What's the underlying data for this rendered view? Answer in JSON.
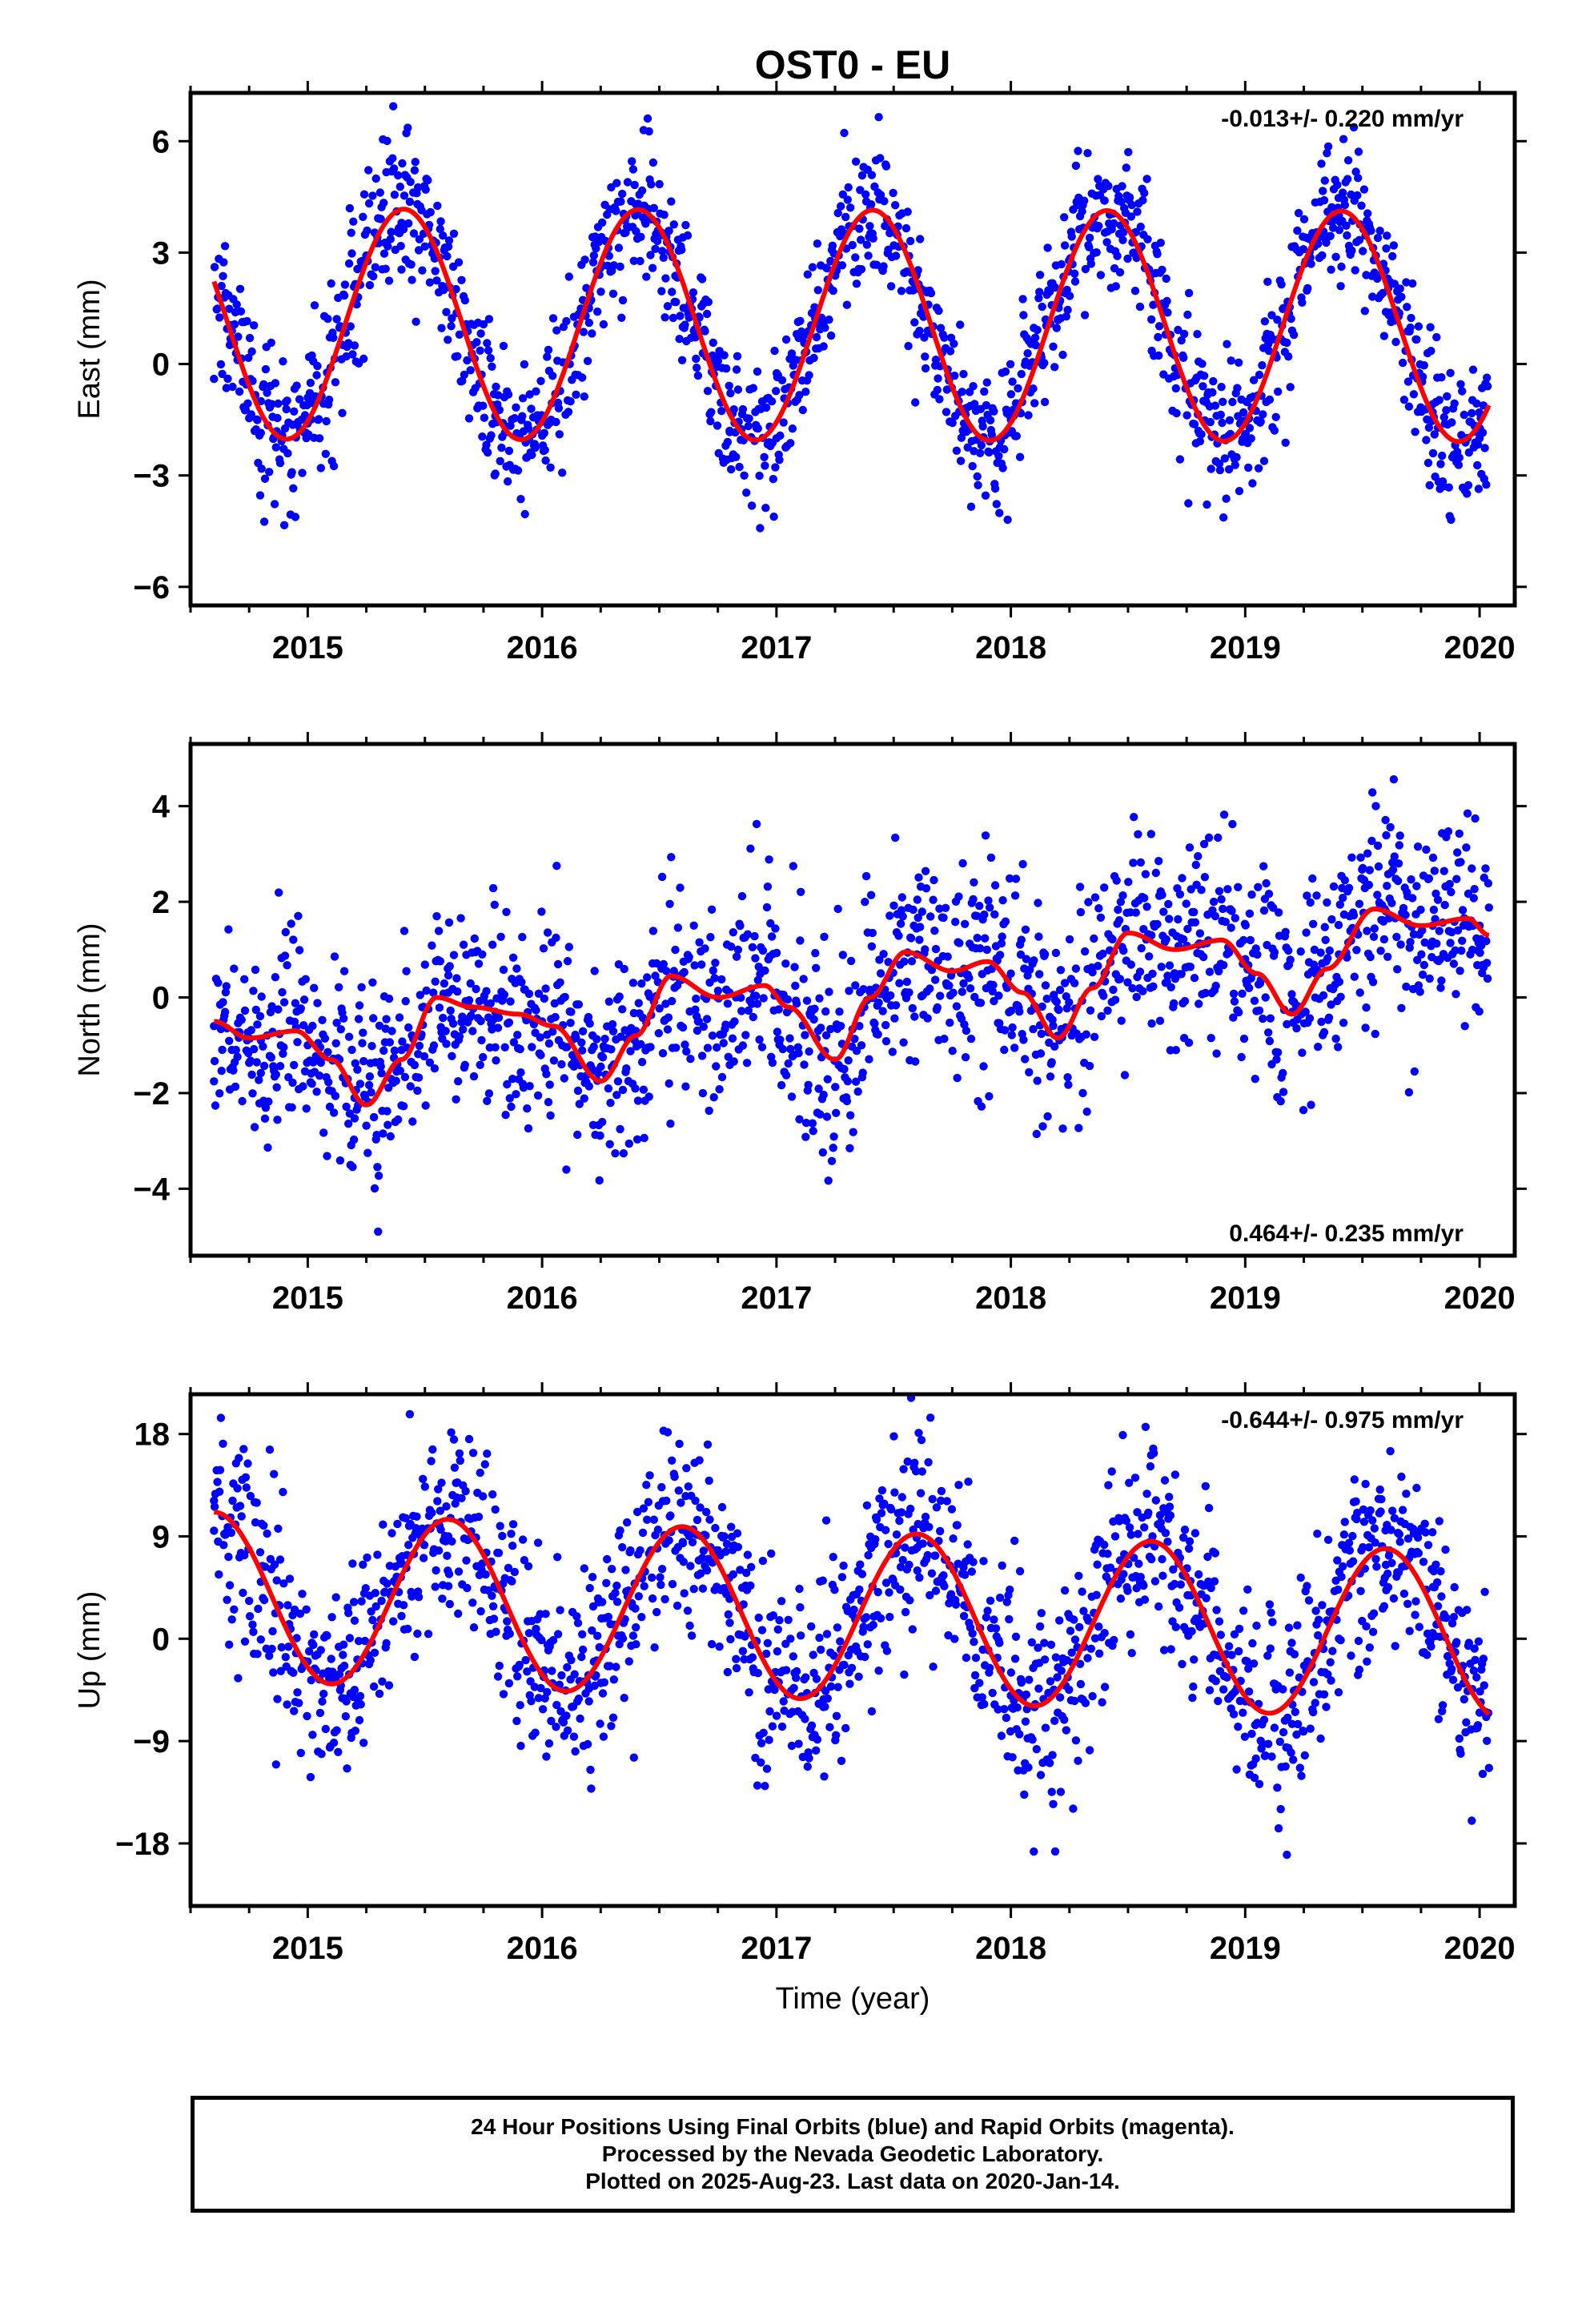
{
  "title": "OST0 - EU",
  "colors": {
    "points": "#0000ff",
    "fit": "#ff0000",
    "axes": "#000000"
  },
  "chart_data": [
    {
      "type": "scatter",
      "title": "OST0 - EU",
      "ylabel": "East (mm)",
      "xlabel": "",
      "xlim": [
        2014.5,
        2020.15
      ],
      "ylim": [
        -6.5,
        7.3
      ],
      "x_ticks": [
        "2015",
        "2016",
        "2017",
        "2018",
        "2019",
        "2020"
      ],
      "y_ticks": [
        "6",
        "3",
        "0",
        "−3",
        "−6"
      ],
      "y_tick_values": [
        6,
        3,
        0,
        -3,
        -6
      ],
      "grid": false,
      "annotation": "-0.013+/- 0.220 mm/yr",
      "annotation_position": "top-right",
      "data_span": [
        2014.6,
        2020.04
      ],
      "seasonal": {
        "amplitude": 3.1,
        "peak_year_fraction": 0.41,
        "mean": 1.05,
        "trend": -0.013
      },
      "scatter_sd": 1.0,
      "series": [
        {
          "role": "daily positions",
          "color": "#0000ff",
          "points": [
            [
              2014.6,
              -0.4
            ],
            [
              2014.8,
              -1.0
            ],
            [
              2015.0,
              -1.6
            ],
            [
              2015.2,
              0.5
            ],
            [
              2015.4,
              3.8
            ],
            [
              2015.6,
              2.1
            ],
            [
              2015.8,
              -1.4
            ],
            [
              2016.0,
              -1.4
            ],
            [
              2016.2,
              1.5
            ],
            [
              2016.4,
              4.3
            ],
            [
              2016.6,
              1.0
            ],
            [
              2016.8,
              -1.8
            ],
            [
              2017.0,
              -2.0
            ],
            [
              2017.2,
              1.1
            ],
            [
              2017.4,
              4.2
            ],
            [
              2017.6,
              0.8
            ],
            [
              2017.8,
              -1.6
            ],
            [
              2018.0,
              -1.5
            ],
            [
              2018.2,
              1.2
            ],
            [
              2018.4,
              4.4
            ],
            [
              2018.6,
              1.2
            ],
            [
              2018.8,
              -1.8
            ],
            [
              2019.0,
              -1.9
            ],
            [
              2019.2,
              0.9
            ],
            [
              2019.4,
              4.0
            ],
            [
              2019.6,
              1.4
            ],
            [
              2019.8,
              -1.3
            ],
            [
              2020.0,
              -2.0
            ]
          ]
        },
        {
          "role": "model fit",
          "color": "#ff0000",
          "line": true
        }
      ]
    },
    {
      "type": "scatter",
      "ylabel": "North (mm)",
      "xlabel": "",
      "xlim": [
        2014.5,
        2020.15
      ],
      "ylim": [
        -5.4,
        5.3
      ],
      "x_ticks": [
        "2015",
        "2016",
        "2017",
        "2018",
        "2019",
        "2020"
      ],
      "y_ticks": [
        "4",
        "2",
        "0",
        "−2",
        "−4"
      ],
      "y_tick_values": [
        4,
        2,
        0,
        -2,
        -4
      ],
      "grid": false,
      "annotation": "0.464+/- 0.235 mm/yr",
      "annotation_position": "bottom-right",
      "data_span": [
        2014.6,
        2020.04
      ],
      "fit_nodes": [
        [
          2014.6,
          -0.5
        ],
        [
          2014.75,
          -0.85
        ],
        [
          2014.95,
          -0.7
        ],
        [
          2015.1,
          -1.3
        ],
        [
          2015.25,
          -2.25
        ],
        [
          2015.4,
          -1.3
        ],
        [
          2015.55,
          0.0
        ],
        [
          2015.7,
          -0.2
        ],
        [
          2015.9,
          -0.35
        ],
        [
          2016.05,
          -0.6
        ],
        [
          2016.25,
          -1.75
        ],
        [
          2016.4,
          -0.8
        ],
        [
          2016.55,
          0.45
        ],
        [
          2016.75,
          0.0
        ],
        [
          2016.95,
          0.25
        ],
        [
          2017.05,
          -0.2
        ],
        [
          2017.25,
          -1.3
        ],
        [
          2017.4,
          0.0
        ],
        [
          2017.55,
          0.95
        ],
        [
          2017.75,
          0.55
        ],
        [
          2017.9,
          0.75
        ],
        [
          2018.05,
          0.1
        ],
        [
          2018.2,
          -0.85
        ],
        [
          2018.35,
          0.2
        ],
        [
          2018.5,
          1.35
        ],
        [
          2018.7,
          1.0
        ],
        [
          2018.9,
          1.2
        ],
        [
          2019.05,
          0.5
        ],
        [
          2019.2,
          -0.35
        ],
        [
          2019.35,
          0.6
        ],
        [
          2019.55,
          1.85
        ],
        [
          2019.75,
          1.5
        ],
        [
          2019.95,
          1.65
        ],
        [
          2020.04,
          1.3
        ]
      ],
      "scatter_sd": 1.05,
      "series": [
        {
          "role": "daily positions",
          "color": "#0000ff",
          "points": [
            [
              2014.6,
              -0.6
            ],
            [
              2014.8,
              -0.9
            ],
            [
              2015.0,
              -1.0
            ],
            [
              2015.2,
              -2.1
            ],
            [
              2015.4,
              -1.1
            ],
            [
              2015.6,
              0.1
            ],
            [
              2015.8,
              -0.3
            ],
            [
              2016.0,
              -0.5
            ],
            [
              2016.2,
              -1.6
            ],
            [
              2016.4,
              -0.7
            ],
            [
              2016.6,
              0.5
            ],
            [
              2016.8,
              0.1
            ],
            [
              2017.0,
              0.1
            ],
            [
              2017.2,
              -1.2
            ],
            [
              2017.4,
              0.1
            ],
            [
              2017.6,
              0.9
            ],
            [
              2017.8,
              0.6
            ],
            [
              2018.0,
              0.5
            ],
            [
              2018.2,
              -0.8
            ],
            [
              2018.4,
              0.5
            ],
            [
              2018.6,
              1.3
            ],
            [
              2018.8,
              1.1
            ],
            [
              2019.0,
              0.8
            ],
            [
              2019.2,
              -0.3
            ],
            [
              2019.4,
              0.9
            ],
            [
              2019.6,
              1.8
            ],
            [
              2019.8,
              1.5
            ],
            [
              2020.0,
              1.5
            ]
          ]
        },
        {
          "role": "model fit",
          "color": "#ff0000",
          "line": true
        }
      ]
    },
    {
      "type": "scatter",
      "ylabel": "Up (mm)",
      "xlabel": "Time (year)",
      "xlim": [
        2014.5,
        2020.15
      ],
      "ylim": [
        -23.5,
        21.5
      ],
      "x_ticks": [
        "2015",
        "2016",
        "2017",
        "2018",
        "2019",
        "2020"
      ],
      "y_ticks": [
        "18",
        "9",
        "0",
        "−9",
        "−18"
      ],
      "y_tick_values": [
        18,
        9,
        0,
        -9,
        -18
      ],
      "grid": false,
      "annotation": "-0.644+/- 0.975 mm/yr",
      "annotation_position": "top-right",
      "data_span": [
        2014.6,
        2020.04
      ],
      "seasonal": {
        "amplitude": 7.4,
        "peak_year_fraction": 0.6,
        "mean": 2.2,
        "trend": -0.644
      },
      "scatter_sd": 4.6,
      "series": [
        {
          "role": "daily positions",
          "color": "#0000ff",
          "points": [
            [
              2014.6,
              9.5
            ],
            [
              2014.8,
              5.0
            ],
            [
              2015.0,
              -2.0
            ],
            [
              2015.2,
              -4.5
            ],
            [
              2015.4,
              2.0
            ],
            [
              2015.6,
              9.0
            ],
            [
              2015.8,
              4.5
            ],
            [
              2016.0,
              -3.0
            ],
            [
              2016.2,
              -5.5
            ],
            [
              2016.4,
              1.0
            ],
            [
              2016.6,
              8.5
            ],
            [
              2016.8,
              3.5
            ],
            [
              2017.0,
              -4.0
            ],
            [
              2017.2,
              -6.0
            ],
            [
              2017.4,
              1.0
            ],
            [
              2017.6,
              8.0
            ],
            [
              2017.8,
              2.0
            ],
            [
              2018.0,
              -5.0
            ],
            [
              2018.2,
              -6.5
            ],
            [
              2018.4,
              0.5
            ],
            [
              2018.6,
              7.0
            ],
            [
              2018.8,
              1.5
            ],
            [
              2019.0,
              -5.5
            ],
            [
              2019.2,
              -7.5
            ],
            [
              2019.4,
              0.0
            ],
            [
              2019.6,
              6.5
            ],
            [
              2019.8,
              0.5
            ],
            [
              2020.0,
              -6.5
            ]
          ]
        },
        {
          "role": "model fit",
          "color": "#ff0000",
          "line": true
        }
      ]
    }
  ],
  "caption": {
    "line1": "24 Hour Positions Using Final Orbits (blue) and Rapid Orbits (magenta).",
    "line2": "Processed by the Nevada Geodetic Laboratory.",
    "line3": "Plotted on 2025-Aug-23. Last data on 2020-Jan-14."
  }
}
